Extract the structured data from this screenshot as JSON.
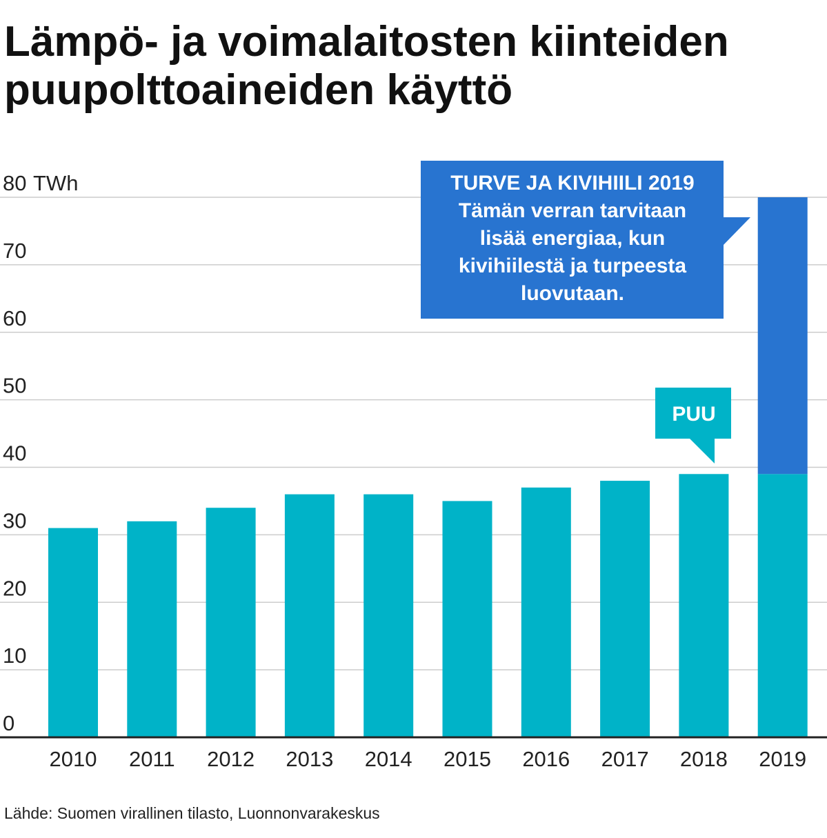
{
  "title_lines": [
    "Lämpö- ja voimalaitosten kiinteiden",
    "puupolttoaineiden käyttö"
  ],
  "source": "Lähde: Suomen virallinen tilasto, Luonnonvarakeskus",
  "colors": {
    "puu": "#00b3c8",
    "turve_kivihiili": "#2874d0",
    "grid": "#cccccc",
    "baseline": "#222222"
  },
  "chart_data": {
    "type": "bar",
    "stacked": true,
    "title": "Lämpö- ja voimalaitosten kiinteiden puupolttoaineiden käyttö",
    "ylabel": "TWh",
    "ylim": [
      0,
      80
    ],
    "yticks": [
      0,
      10,
      20,
      30,
      40,
      50,
      60,
      70,
      80
    ],
    "ytick_labels": [
      "0",
      "10",
      "20",
      "30",
      "40",
      "50",
      "60",
      "70",
      "80"
    ],
    "y_unit_label": "TWh",
    "grid": true,
    "categories": [
      "2010",
      "2011",
      "2012",
      "2013",
      "2014",
      "2015",
      "2016",
      "2017",
      "2018",
      "2019"
    ],
    "series": [
      {
        "name": "PUU",
        "values": [
          31,
          32,
          34,
          36,
          36,
          35,
          37,
          38,
          39,
          39
        ]
      },
      {
        "name": "TURVE JA KIVIHIILI 2019",
        "values": [
          0,
          0,
          0,
          0,
          0,
          0,
          0,
          0,
          0,
          41
        ]
      }
    ],
    "annotations": [
      {
        "series": "PUU",
        "text_lines": [
          "PUU"
        ]
      },
      {
        "series": "TURVE JA KIVIHIILI 2019",
        "text_lines": [
          "TURVE JA KIVIHIILI 2019",
          "Tämän verran tarvitaan",
          "lisää energiaa, kun",
          "kivihiilestä ja turpeesta",
          "luovutaan."
        ]
      }
    ]
  }
}
